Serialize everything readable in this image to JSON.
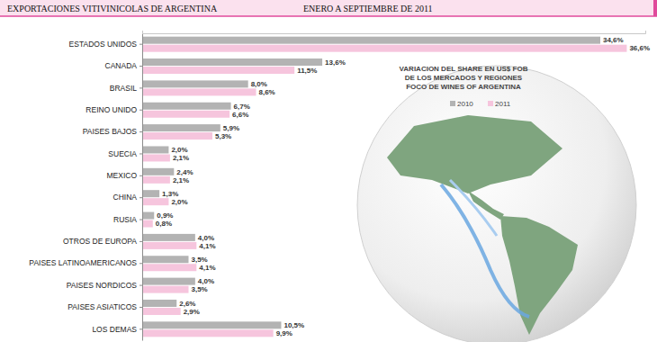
{
  "chart_data": {
    "type": "bar",
    "orientation": "horizontal",
    "title": "EXPORTACIONES VITIVINICOLAS DE ARGENTINA",
    "subtitle": "ENERO A SEPTIEMBRE DE 2011",
    "annotations": [
      "VARIACION DEL SHARE EN US$ FOB",
      "DE LOS MERCADOS Y REGIONES",
      "FOCO DE WINES OF ARGENTINA"
    ],
    "categories": [
      "ESTADOS UNIDOS",
      "CANADA",
      "BRASIL",
      "REINO UNIDO",
      "PAISES BAJOS",
      "SUECIA",
      "MEXICO",
      "CHINA",
      "RUSIA",
      "OTROS DE EUROPA",
      "PAISES LATINOAMERICANOS",
      "PAISES NORDICOS",
      "PAISES ASIATICOS",
      "LOS DEMAS"
    ],
    "series": [
      {
        "name": "2010",
        "color": "#b3b3b3",
        "values": [
          34.6,
          13.6,
          8.0,
          6.7,
          5.9,
          2.0,
          2.4,
          1.3,
          0.9,
          4.0,
          3.5,
          4.0,
          2.6,
          10.5
        ],
        "value_labels": [
          "34,6%",
          "13,6%",
          "8,0%",
          "6,7%",
          "5,9%",
          "2,0%",
          "2,4%",
          "1,3%",
          "0,9%",
          "4,0%",
          "3,5%",
          "4,0%",
          "2,6%",
          "10,5%"
        ]
      },
      {
        "name": "2011",
        "color": "#f6c5dd",
        "values": [
          36.6,
          11.5,
          8.6,
          6.6,
          5.3,
          2.1,
          2.1,
          2.0,
          0.8,
          4.1,
          4.1,
          3.5,
          2.9,
          9.9
        ],
        "value_labels": [
          "36,6%",
          "11,5%",
          "8,6%",
          "6,6%",
          "5,3%",
          "2,1%",
          "2,1%",
          "2,0%",
          "0,8%",
          "4,1%",
          "4,1%",
          "3,5%",
          "2,9%",
          "9,9%"
        ]
      }
    ],
    "xlim": [
      0,
      38
    ],
    "grid": false,
    "legend": "top-right",
    "data_labels": true,
    "tick_labels": "y"
  }
}
